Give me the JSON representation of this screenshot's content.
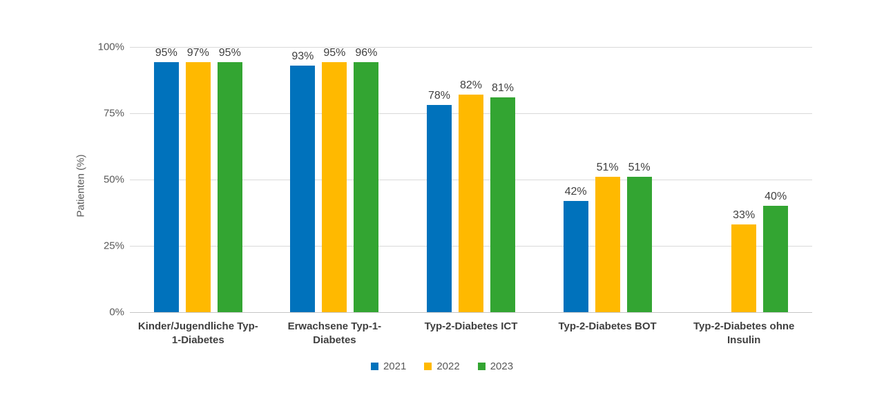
{
  "chart_data": {
    "type": "bar",
    "title": "",
    "xlabel": "",
    "ylabel": "Patienten (%)",
    "categories": [
      "Kinder/Jugendliche Typ-1-Diabetes",
      "Erwachsene Typ-1-Diabetes",
      "Typ-2-Diabetes ICT",
      "Typ-2-Diabetes BOT",
      "Typ-2-Diabetes ohne Insulin"
    ],
    "series": [
      {
        "name": "2021",
        "color": "#0072bc",
        "values": [
          95,
          93,
          78,
          42,
          null
        ]
      },
      {
        "name": "2022",
        "color": "#ffb900",
        "values": [
          97,
          95,
          82,
          51,
          33
        ]
      },
      {
        "name": "2023",
        "color": "#33a532",
        "values": [
          95,
          96,
          81,
          51,
          40
        ]
      }
    ],
    "value_suffix": "%",
    "ylim": [
      0,
      100
    ],
    "ytick_labels": [
      "0%",
      "25%",
      "50%",
      "75%",
      "100%"
    ],
    "ytick_values": [
      0,
      25,
      50,
      75,
      100
    ],
    "grid": true,
    "legend_position": "bottom"
  },
  "colors": {
    "background": "#ffffff",
    "gridline": "#d9d9d9",
    "axis_line": "#c6c6c6",
    "tick_label": "#595959",
    "data_label": "#404040",
    "category_label": "#404040",
    "legend_label": "#595959"
  }
}
